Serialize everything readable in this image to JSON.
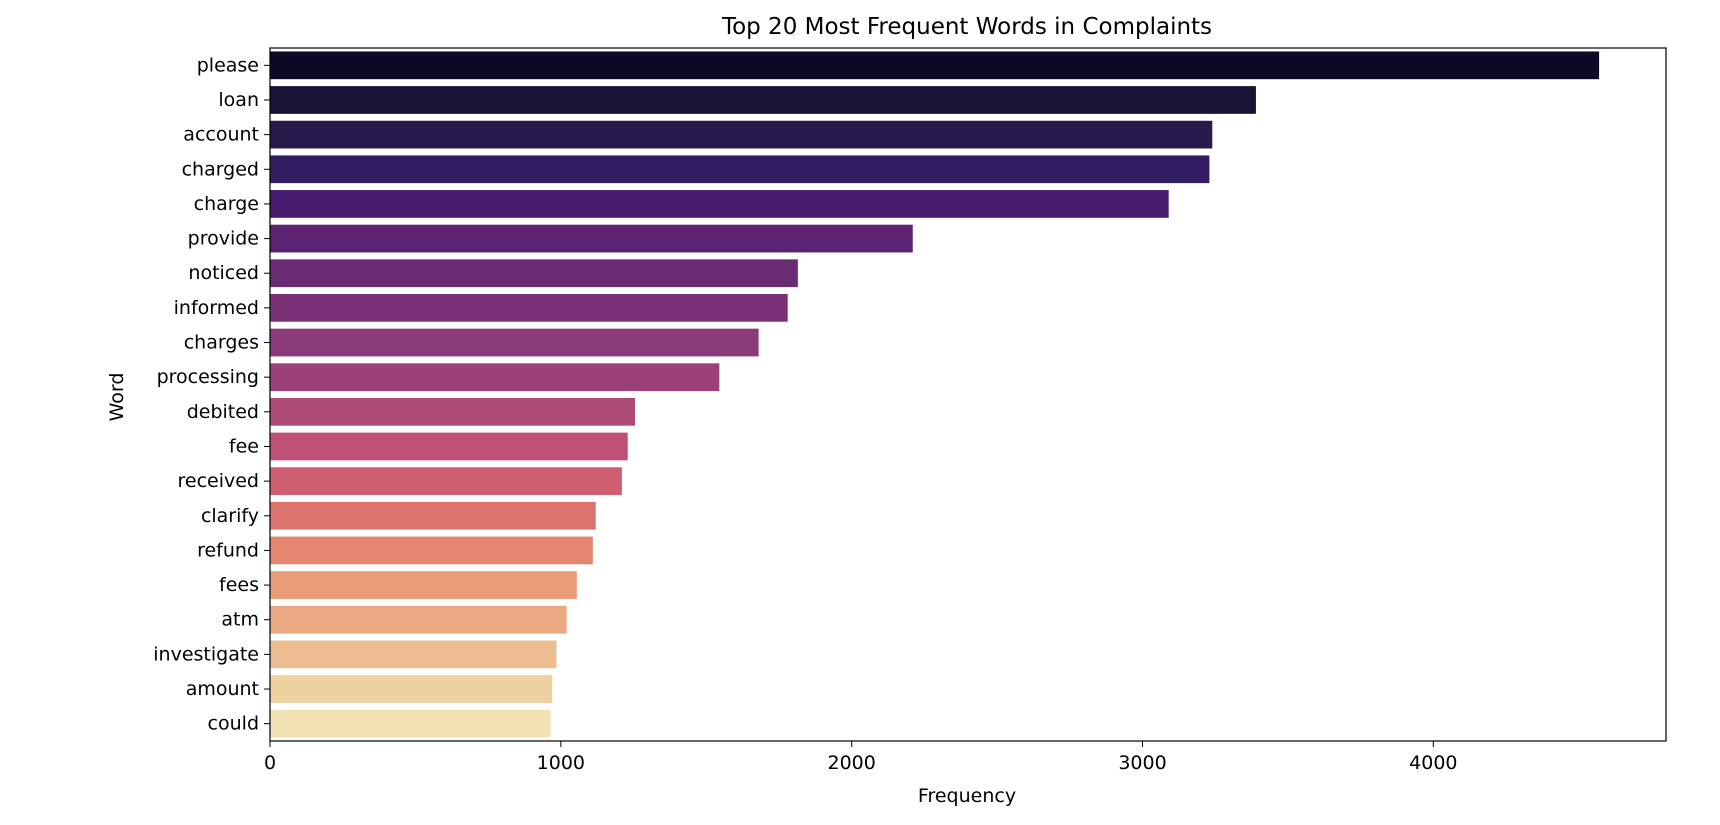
{
  "chart_data": {
    "type": "bar",
    "orientation": "horizontal",
    "title": "Top 20 Most Frequent Words in Complaints",
    "xlabel": "Frequency",
    "ylabel": "Word",
    "xlim": [
      0,
      4800
    ],
    "xticks": [
      0,
      1000,
      2000,
      3000,
      4000
    ],
    "grid": false,
    "legend": "none",
    "palette": "magma",
    "categories": [
      "please",
      "loan",
      "account",
      "charged",
      "charge",
      "provide",
      "noticed",
      "informed",
      "charges",
      "processing",
      "debited",
      "fee",
      "received",
      "clarify",
      "refund",
      "fees",
      "atm",
      "investigate",
      "amount",
      "could"
    ],
    "values": [
      4570,
      3390,
      3240,
      3230,
      3090,
      2210,
      1815,
      1780,
      1680,
      1545,
      1255,
      1230,
      1210,
      1120,
      1110,
      1055,
      1020,
      985,
      970,
      965
    ],
    "colors": [
      "#0b0924",
      "#181235",
      "#271a4a",
      "#331d62",
      "#471b6f",
      "#5a2270",
      "#6b2a74",
      "#7b3176",
      "#8b3a79",
      "#9c4079",
      "#ae4a78",
      "#c05174",
      "#cf5f70",
      "#dc746d",
      "#e3866f",
      "#e89c78",
      "#eaa982",
      "#ecbd90",
      "#efd09f",
      "#f3e3b4"
    ]
  }
}
